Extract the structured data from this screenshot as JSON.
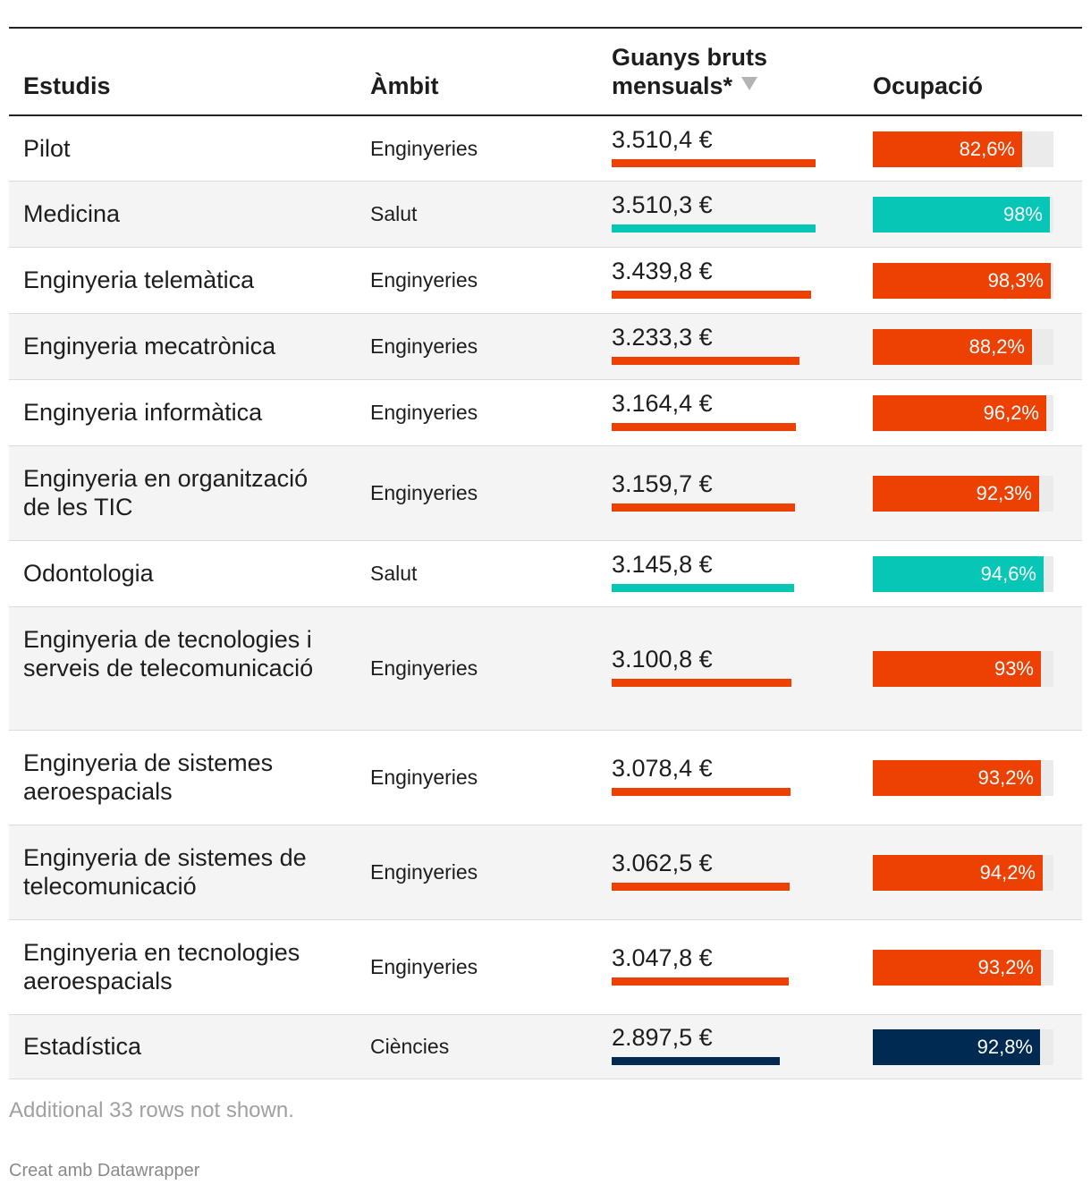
{
  "chart_data": {
    "type": "table",
    "title": "",
    "columns": [
      {
        "key": "estudis",
        "label": "Estudis"
      },
      {
        "key": "ambit",
        "label": "Àmbit"
      },
      {
        "key": "guanys",
        "label": "Guanys bruts mensuals*",
        "label_line1": "Guanys bruts",
        "label_line2": "mensuals*",
        "sorted": "descending"
      },
      {
        "key": "ocupacio",
        "label": "Ocupació"
      }
    ],
    "rows": [
      {
        "estudis": "Pilot",
        "ambit": "Enginyeries",
        "guanys": 3510.4,
        "guanys_label": "3.510,4 €",
        "ocupacio": 82.6,
        "ocupacio_label": "82,6%"
      },
      {
        "estudis": "Medicina",
        "ambit": "Salut",
        "guanys": 3510.3,
        "guanys_label": "3.510,3 €",
        "ocupacio": 98,
        "ocupacio_label": "98%"
      },
      {
        "estudis": "Enginyeria telemàtica",
        "ambit": "Enginyeries",
        "guanys": 3439.8,
        "guanys_label": "3.439,8 €",
        "ocupacio": 98.3,
        "ocupacio_label": "98,3%"
      },
      {
        "estudis": "Enginyeria mecatrònica",
        "ambit": "Enginyeries",
        "guanys": 3233.3,
        "guanys_label": "3.233,3 €",
        "ocupacio": 88.2,
        "ocupacio_label": "88,2%"
      },
      {
        "estudis": "Enginyeria informàtica",
        "ambit": "Enginyeries",
        "guanys": 3164.4,
        "guanys_label": "3.164,4 €",
        "ocupacio": 96.2,
        "ocupacio_label": "96,2%"
      },
      {
        "estudis": "Enginyeria en organització de les TIC",
        "ambit": "Enginyeries",
        "guanys": 3159.7,
        "guanys_label": "3.159,7 €",
        "ocupacio": 92.3,
        "ocupacio_label": "92,3%"
      },
      {
        "estudis": "Odontologia",
        "ambit": "Salut",
        "guanys": 3145.8,
        "guanys_label": "3.145,8 €",
        "ocupacio": 94.6,
        "ocupacio_label": "94,6%"
      },
      {
        "estudis": "Enginyeria de tecnologies i serveis de telecomunicació",
        "ambit": "Enginyeries",
        "guanys": 3100.8,
        "guanys_label": "3.100,8 €",
        "ocupacio": 93,
        "ocupacio_label": "93%"
      },
      {
        "estudis": "Enginyeria de sistemes aeroespacials",
        "ambit": "Enginyeries",
        "guanys": 3078.4,
        "guanys_label": "3.078,4 €",
        "ocupacio": 93.2,
        "ocupacio_label": "93,2%"
      },
      {
        "estudis": "Enginyeria de sistemes de telecomunicació",
        "ambit": "Enginyeries",
        "guanys": 3062.5,
        "guanys_label": "3.062,5 €",
        "ocupacio": 94.2,
        "ocupacio_label": "94,2%"
      },
      {
        "estudis": "Enginyeria en tecnologies aeroespacials",
        "ambit": "Enginyeries",
        "guanys": 3047.8,
        "guanys_label": "3.047,8 €",
        "ocupacio": 93.2,
        "ocupacio_label": "93,2%"
      },
      {
        "estudis": "Estadística",
        "ambit": "Ciències",
        "guanys": 2897.5,
        "guanys_label": "2.897,5 €",
        "ocupacio": 92.8,
        "ocupacio_label": "92,8%"
      }
    ],
    "guanys_max": 3510.4,
    "ocupacio_max": 100,
    "ambit_colors": {
      "Enginyeries": "#ec4103",
      "Salut": "#06c7b5",
      "Ciències": "#002a51"
    },
    "footer_note": "Additional 33 rows not shown.",
    "credit": "Creat amb Datawrapper"
  }
}
